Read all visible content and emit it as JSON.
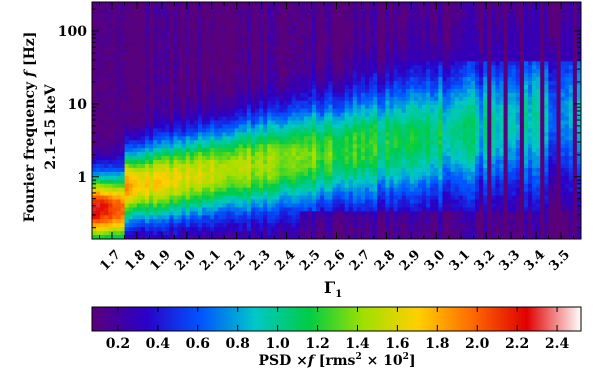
{
  "chart_data": {
    "type": "heatmap",
    "xlabel": "Γ",
    "xlabel_sub": "1",
    "ylabel": "Fourier frequency",
    "ylabel_symbol": "f",
    "ylabel_unit": "[Hz]",
    "ylabel_band": "2.1–15 keV",
    "y_scale": "log",
    "xlim": [
      1.62,
      3.58
    ],
    "ylim": [
      0.14,
      250
    ],
    "x_ticks": [
      "1.7",
      "1.8",
      "1.9",
      "2.0",
      "2.1",
      "2.2",
      "2.3",
      "2.4",
      "2.5",
      "2.6",
      "2.7",
      "2.8",
      "2.9",
      "3.0",
      "3.1",
      "3.2",
      "3.3",
      "3.4",
      "3.5"
    ],
    "x_tick_values": [
      1.7,
      1.8,
      1.9,
      2.0,
      2.1,
      2.2,
      2.3,
      2.4,
      2.5,
      2.6,
      2.7,
      2.8,
      2.9,
      3.0,
      3.1,
      3.2,
      3.3,
      3.4,
      3.5
    ],
    "y_ticks": [
      "1",
      "10",
      "100"
    ],
    "y_tick_values": [
      1,
      10,
      100
    ],
    "colorbar": {
      "label": "PSD",
      "label_symbol": "f",
      "label_unit_open": "[rms",
      "label_unit_exp": "2",
      "label_unit_mid": " × 10",
      "label_unit_exp2": "2",
      "label_unit_close": "]",
      "range": [
        0.07,
        2.52
      ],
      "ticks": [
        "0.2",
        "0.4",
        "0.6",
        "0.8",
        "1.0",
        "1.2",
        "1.4",
        "1.6",
        "1.8",
        "2.0",
        "2.2",
        "2.4"
      ],
      "tick_values": [
        0.2,
        0.4,
        0.6,
        0.8,
        1.0,
        1.2,
        1.4,
        1.6,
        1.8,
        2.0,
        2.2,
        2.4
      ],
      "colormap": [
        "#5a007a",
        "#2a00c8",
        "#0055ff",
        "#00c8c8",
        "#00cc44",
        "#a0e000",
        "#ffd000",
        "#ff6a00",
        "#e00000",
        "#ffffff"
      ]
    }
  }
}
